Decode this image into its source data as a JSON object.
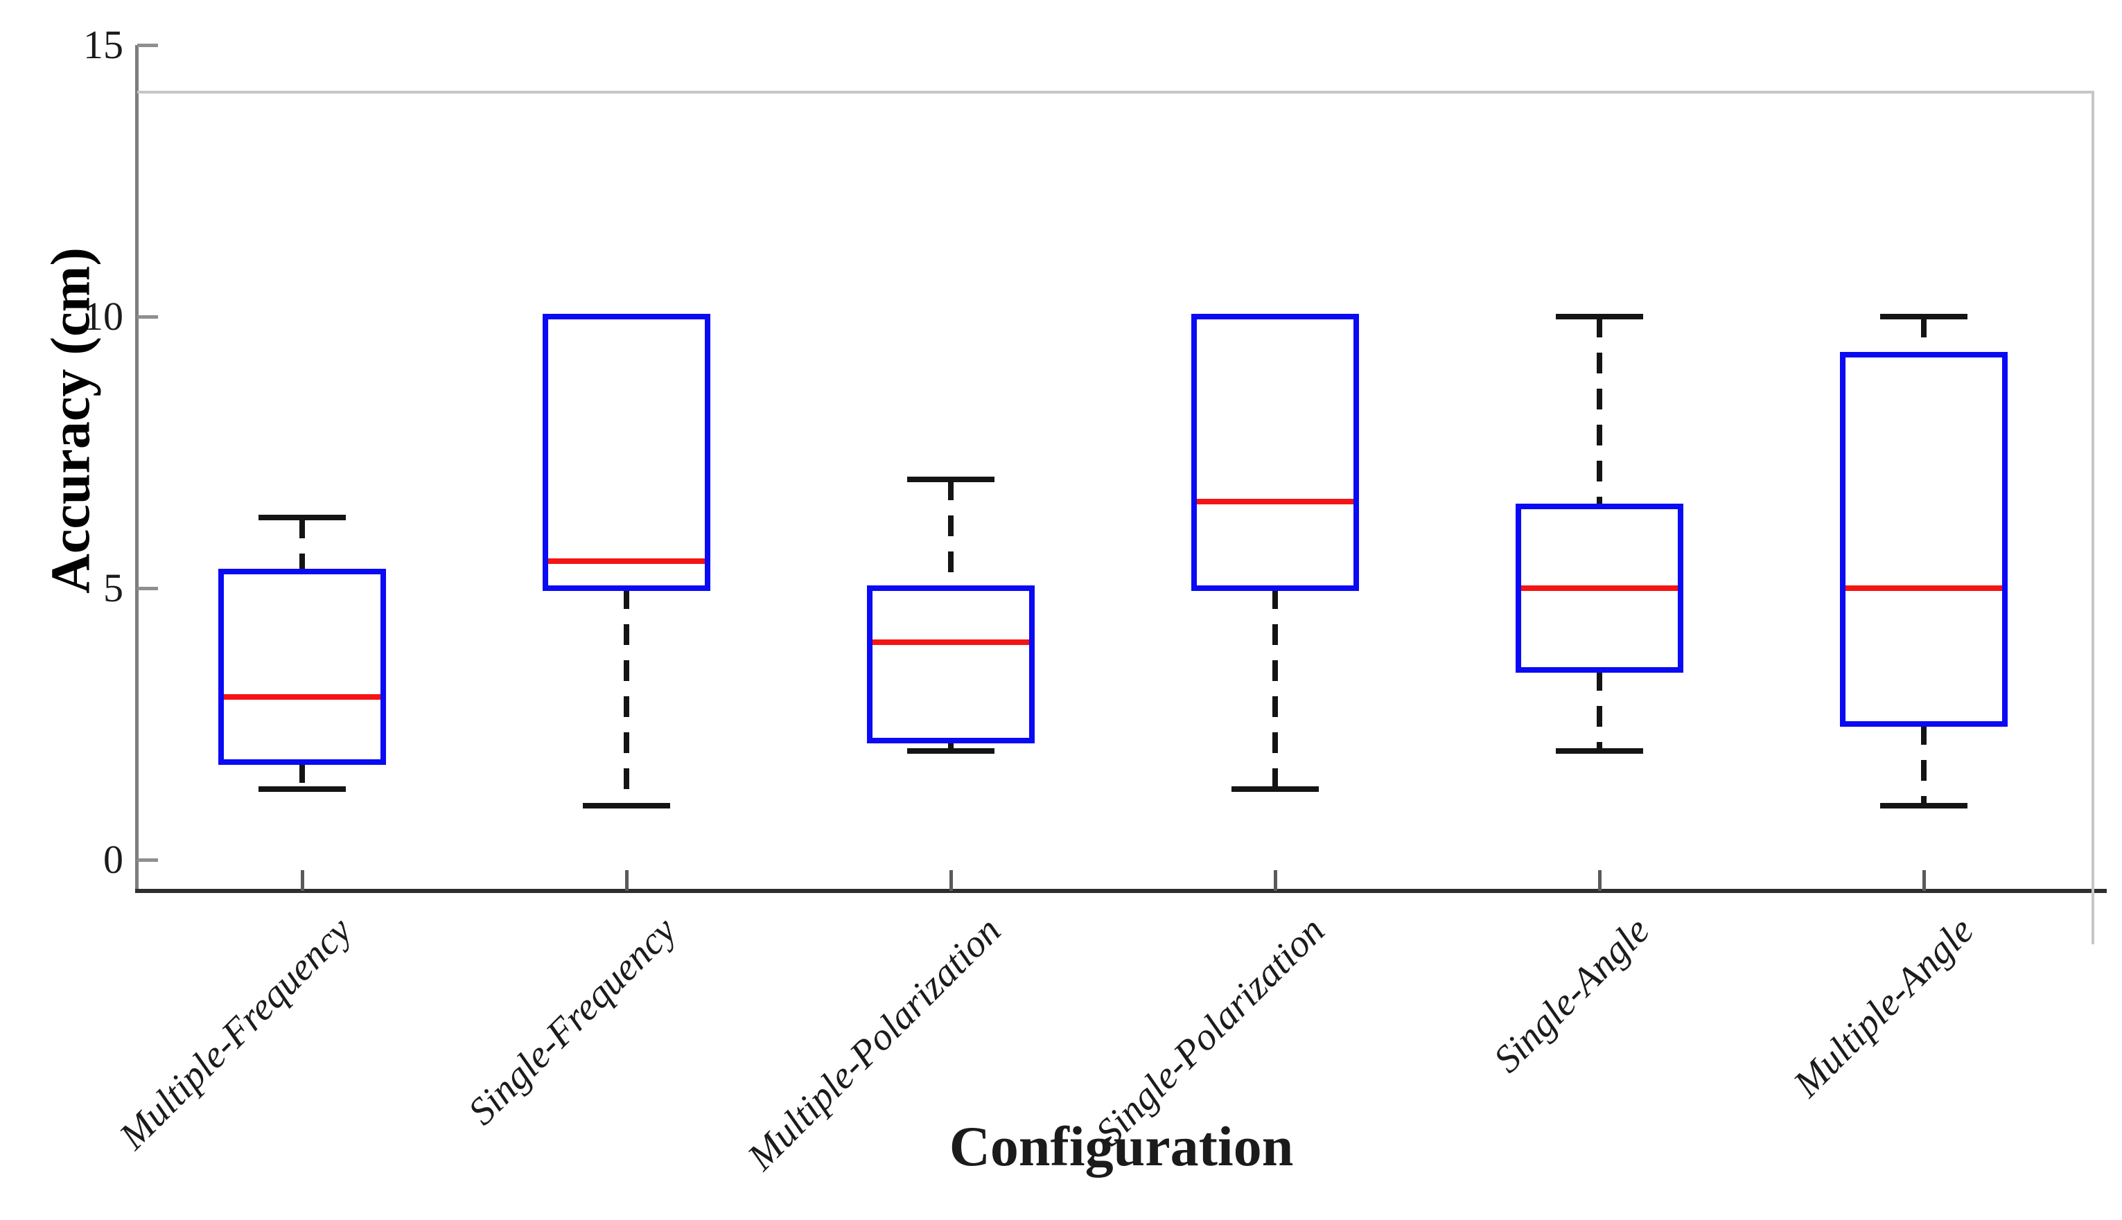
{
  "chart_data": {
    "type": "boxplot",
    "xlabel": "Configuration",
    "ylabel": "Accuracy (cm)",
    "categories": [
      "Multiple-Frequency",
      "Single-Frequency",
      "Multiple-Polarization",
      "Single-Polarization",
      "Single-Angle",
      "Multiple-Angle"
    ],
    "yticks": [
      {
        "v": 0,
        "label": "0"
      },
      {
        "v": 5,
        "label": "5"
      },
      {
        "v": 10,
        "label": "10"
      },
      {
        "v": 15,
        "label": "15"
      }
    ],
    "ylim": [
      -0.6,
      15
    ],
    "grid": false,
    "legend": null,
    "boxes": [
      {
        "category": "Multiple-Frequency",
        "whisker_low": 1.3,
        "q1": 1.8,
        "median": 3.0,
        "q3": 5.3,
        "whisker_high": 6.3
      },
      {
        "category": "Single-Frequency",
        "whisker_low": 1.0,
        "q1": 5.0,
        "median": 5.5,
        "q3": 10.0,
        "whisker_high": 10.0
      },
      {
        "category": "Multiple-Polarization",
        "whisker_low": 2.0,
        "q1": 2.2,
        "median": 4.0,
        "q3": 5.0,
        "whisker_high": 7.0
      },
      {
        "category": "Single-Polarization",
        "whisker_low": 1.3,
        "q1": 5.0,
        "median": 6.6,
        "q3": 10.0,
        "whisker_high": 10.0
      },
      {
        "category": "Single-Angle",
        "whisker_low": 2.0,
        "q1": 3.5,
        "median": 5.0,
        "q3": 6.5,
        "whisker_high": 10.0
      },
      {
        "category": "Multiple-Angle",
        "whisker_low": 1.0,
        "q1": 2.5,
        "median": 5.0,
        "q3": 9.3,
        "whisker_high": 10.0
      }
    ],
    "colors": {
      "box": "#0a0af5",
      "median": "#f51414",
      "whisker": "#141414",
      "cap": "#141414",
      "axis_left": "#7d7d7d",
      "axis_bottom": "#2e2e2e",
      "frame": "#c6c6c6",
      "tick": "#8f8f8f",
      "text": "#1b1b1b"
    }
  }
}
